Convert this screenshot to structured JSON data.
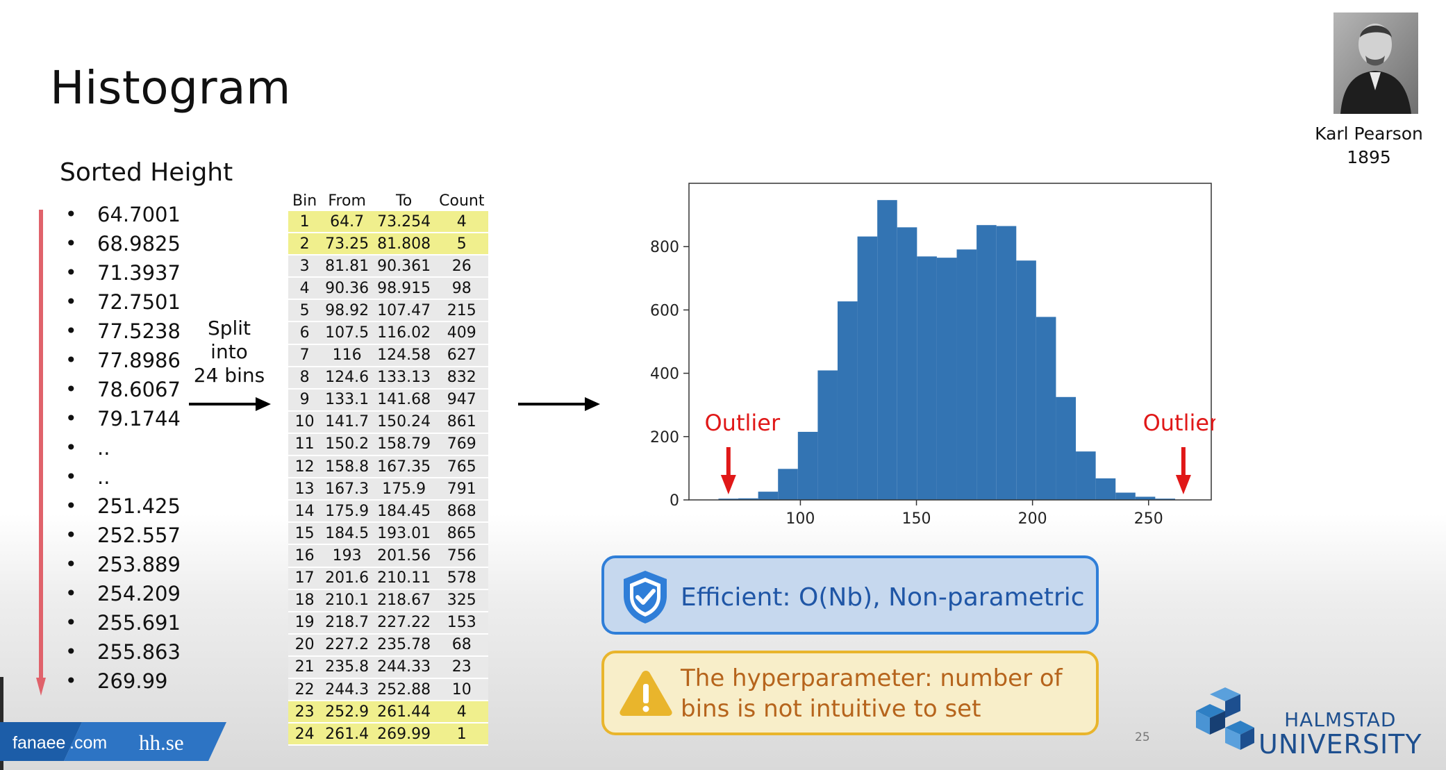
{
  "slide": {
    "title": "Histogram",
    "page_number": "25"
  },
  "sorted": {
    "title": "Sorted Height",
    "values": [
      "64.7001",
      "68.9825",
      "71.3937",
      "72.7501",
      "77.5238",
      "77.8986",
      "78.6067",
      "79.1744",
      "..",
      "..",
      "251.425",
      "252.557",
      "253.889",
      "254.209",
      "255.691",
      "255.863",
      "269.99"
    ]
  },
  "split_label": [
    "Split",
    "into",
    "24 bins"
  ],
  "bins": {
    "headers": [
      "Bin",
      "From",
      "To",
      "Count"
    ],
    "rows": [
      [
        "1",
        "64.7",
        "73.254",
        "4"
      ],
      [
        "2",
        "73.25",
        "81.808",
        "5"
      ],
      [
        "3",
        "81.81",
        "90.361",
        "26"
      ],
      [
        "4",
        "90.36",
        "98.915",
        "98"
      ],
      [
        "5",
        "98.92",
        "107.47",
        "215"
      ],
      [
        "6",
        "107.5",
        "116.02",
        "409"
      ],
      [
        "7",
        "116",
        "124.58",
        "627"
      ],
      [
        "8",
        "124.6",
        "133.13",
        "832"
      ],
      [
        "9",
        "133.1",
        "141.68",
        "947"
      ],
      [
        "10",
        "141.7",
        "150.24",
        "861"
      ],
      [
        "11",
        "150.2",
        "158.79",
        "769"
      ],
      [
        "12",
        "158.8",
        "167.35",
        "765"
      ],
      [
        "13",
        "167.3",
        "175.9",
        "791"
      ],
      [
        "14",
        "175.9",
        "184.45",
        "868"
      ],
      [
        "15",
        "184.5",
        "193.01",
        "865"
      ],
      [
        "16",
        "193",
        "201.56",
        "756"
      ],
      [
        "17",
        "201.6",
        "210.11",
        "578"
      ],
      [
        "18",
        "210.1",
        "218.67",
        "325"
      ],
      [
        "19",
        "218.7",
        "227.22",
        "153"
      ],
      [
        "20",
        "227.2",
        "235.78",
        "68"
      ],
      [
        "21",
        "235.8",
        "244.33",
        "23"
      ],
      [
        "22",
        "244.3",
        "252.88",
        "10"
      ],
      [
        "23",
        "252.9",
        "261.44",
        "4"
      ],
      [
        "24",
        "261.4",
        "269.99",
        "1"
      ]
    ],
    "highlighted_rows": [
      0,
      1,
      22,
      23
    ],
    "highlight_color": "#f0ef8d"
  },
  "chart_data": {
    "type": "bar",
    "bar_color": "#3374b3",
    "bin_edges": [
      64.7,
      73.254,
      81.808,
      90.361,
      98.915,
      107.47,
      116.02,
      124.58,
      133.13,
      141.68,
      150.24,
      158.79,
      167.35,
      175.9,
      184.45,
      193.01,
      201.56,
      210.11,
      218.67,
      227.22,
      235.78,
      244.33,
      252.88,
      261.44,
      269.99
    ],
    "values": [
      4,
      5,
      26,
      98,
      215,
      409,
      627,
      832,
      947,
      861,
      769,
      765,
      791,
      868,
      865,
      756,
      578,
      325,
      153,
      68,
      23,
      10,
      4,
      1
    ],
    "xlim": [
      52,
      277
    ],
    "ylim": [
      0,
      1000
    ],
    "xticks": [
      100,
      150,
      200,
      250
    ],
    "yticks": [
      0,
      200,
      400,
      600,
      800
    ],
    "annotations": [
      {
        "text": "Outlier",
        "x": 69,
        "color": "#e01818"
      },
      {
        "text": "Outlier",
        "x": 265,
        "color": "#e01818"
      }
    ]
  },
  "callouts": {
    "efficient": "Efficient: O(Nb), Non-parametric",
    "warning_line1": "The hyperparameter: number of",
    "warning_line2": "bins is not intuitive to set"
  },
  "portrait": {
    "name": "Karl Pearson",
    "year": "1895"
  },
  "banner": {
    "site1_a": "fanaee",
    "site1_b": ".com",
    "site2": "hh.se"
  },
  "university": {
    "line1": "HALMSTAD",
    "line2": "UNIVERSITY",
    "color": "#1d4f8f"
  }
}
